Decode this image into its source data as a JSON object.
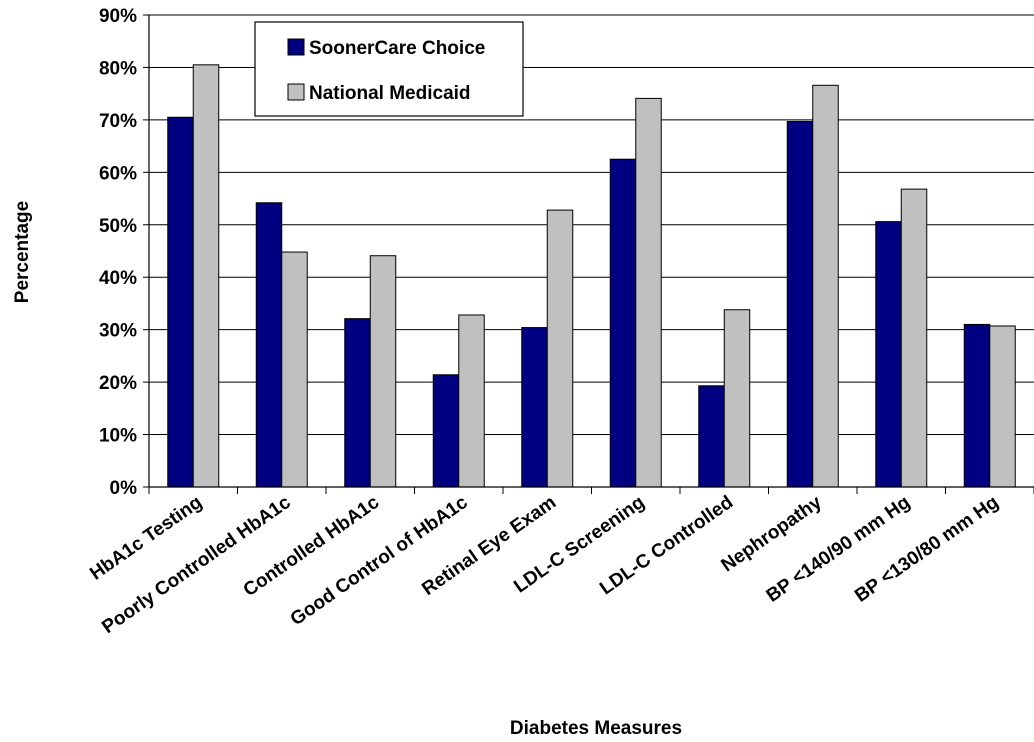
{
  "chart_data": {
    "type": "bar",
    "title": "",
    "xlabel": "Diabetes Measures",
    "ylabel": "Percentage",
    "ylim": [
      0,
      90
    ],
    "y_ticks": [
      "0%",
      "10%",
      "20%",
      "30%",
      "40%",
      "50%",
      "60%",
      "70%",
      "80%",
      "90%"
    ],
    "grid": true,
    "legend_position": "top-left",
    "categories": [
      "HbA1c Testing",
      "Poorly Controlled HbA1c",
      "Controlled HbA1c",
      "Good Control of HbA1c",
      "Retinal Eye Exam",
      "LDL-C Screening",
      "LDL-C Controlled",
      "Nephropathy",
      "BP <140/90 mm Hg",
      "BP <130/80 mm Hg"
    ],
    "series": [
      {
        "name": "SoonerCare Choice",
        "color": "#000080",
        "values": [
          70.5,
          54.2,
          32.1,
          21.4,
          30.4,
          62.5,
          19.3,
          69.7,
          50.6,
          31.0
        ]
      },
      {
        "name": "National Medicaid",
        "color": "#c0c0c0",
        "values": [
          80.5,
          44.8,
          44.1,
          32.8,
          52.8,
          74.1,
          33.8,
          76.6,
          56.8,
          30.7
        ]
      }
    ]
  }
}
